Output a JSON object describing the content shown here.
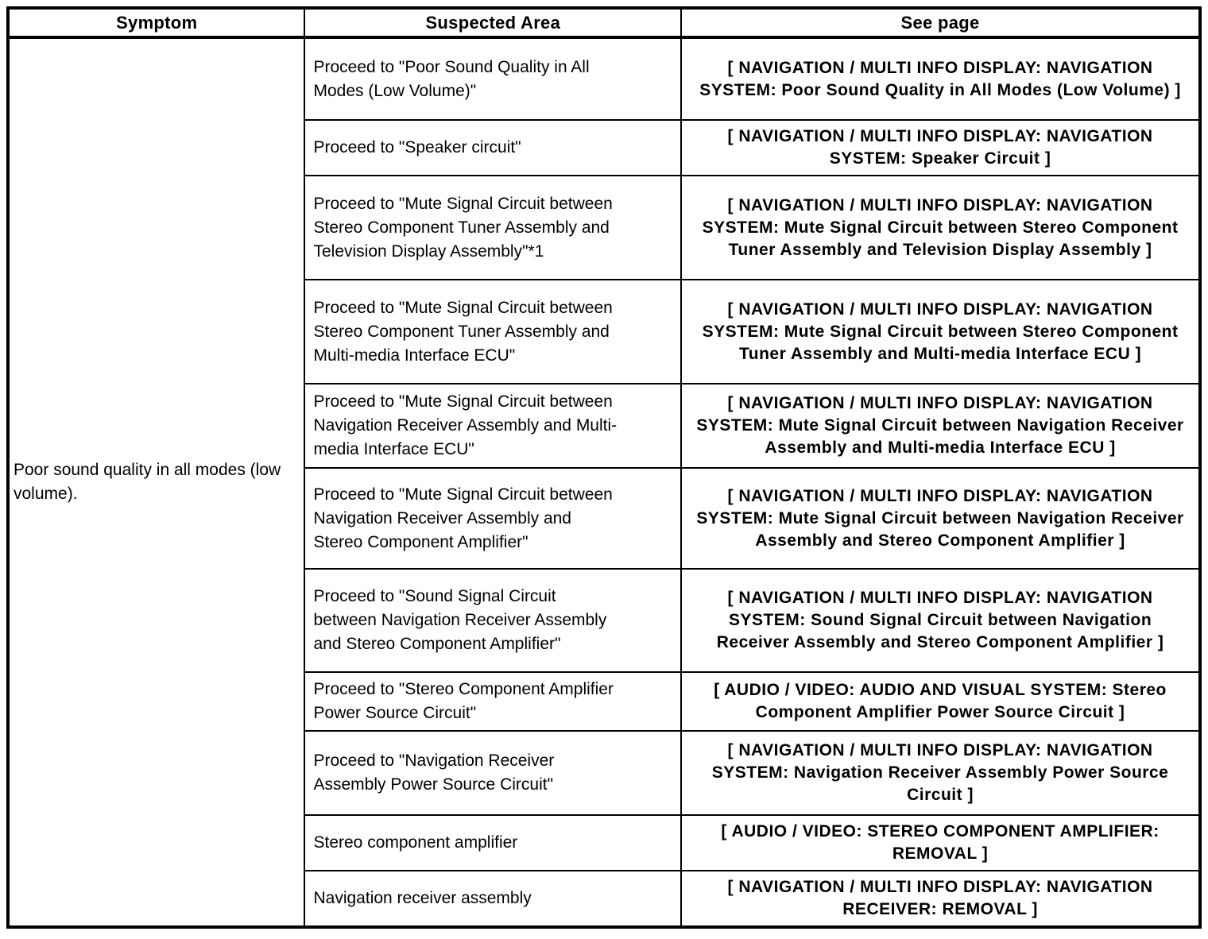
{
  "table": {
    "headers": [
      "Symptom",
      "Suspected Area",
      "See page"
    ],
    "symptom": "Poor sound quality in all modes (low volume).",
    "rows": [
      {
        "suspected_area": "Proceed to \"Poor Sound Quality in All Modes (Low Volume)\"",
        "see_page": "[ NAVIGATION / MULTI INFO DISPLAY: NAVIGATION SYSTEM: Poor Sound Quality in All Modes (Low Volume) ]"
      },
      {
        "suspected_area": "Proceed to \"Speaker circuit\"",
        "see_page": "[ NAVIGATION / MULTI INFO DISPLAY: NAVIGATION SYSTEM: Speaker Circuit ]"
      },
      {
        "suspected_area": "Proceed to \"Mute Signal Circuit between Stereo Component Tuner Assembly and Television Display Assembly\"*1",
        "see_page": "[ NAVIGATION / MULTI INFO DISPLAY: NAVIGATION SYSTEM: Mute Signal Circuit between Stereo Component Tuner Assembly and Television Display Assembly ]"
      },
      {
        "suspected_area": "Proceed to \"Mute Signal Circuit between Stereo Component Tuner Assembly and Multi-media Interface ECU\"",
        "see_page": "[ NAVIGATION / MULTI INFO DISPLAY: NAVIGATION SYSTEM: Mute Signal Circuit between Stereo Component Tuner Assembly and Multi-media Interface ECU ]"
      },
      {
        "suspected_area": "Proceed to \"Mute Signal Circuit between Navigation Receiver Assembly and Multi-media Interface ECU\"",
        "see_page": "[ NAVIGATION / MULTI INFO DISPLAY: NAVIGATION SYSTEM: Mute Signal Circuit between Navigation Receiver Assembly and Multi-media Interface ECU ]"
      },
      {
        "suspected_area": "Proceed to \"Mute Signal Circuit between Navigation Receiver Assembly and Stereo Component Amplifier\"",
        "see_page": "[ NAVIGATION / MULTI INFO DISPLAY: NAVIGATION SYSTEM: Mute Signal Circuit between Navigation Receiver Assembly and Stereo Component Amplifier ]"
      },
      {
        "suspected_area": "Proceed to \"Sound Signal Circuit between Navigation Receiver Assembly and Stereo Component Amplifier\"",
        "see_page": "[ NAVIGATION / MULTI INFO DISPLAY: NAVIGATION SYSTEM: Sound Signal Circuit between Navigation Receiver Assembly and Stereo Component Amplifier ]"
      },
      {
        "suspected_area": "Proceed to \"Stereo Component Amplifier Power Source Circuit\"",
        "see_page": "[ AUDIO / VIDEO: AUDIO AND VISUAL SYSTEM: Stereo Component Amplifier Power Source Circuit ]"
      },
      {
        "suspected_area": "Proceed to \"Navigation Receiver Assembly Power Source Circuit\"",
        "see_page": "[ NAVIGATION / MULTI INFO DISPLAY: NAVIGATION SYSTEM: Navigation Receiver Assembly Power Source Circuit ]"
      },
      {
        "suspected_area": "Stereo component amplifier",
        "see_page": "[ AUDIO / VIDEO: STEREO COMPONENT AMPLIFIER: REMOVAL ]"
      },
      {
        "suspected_area": "Navigation receiver assembly",
        "see_page": "[ NAVIGATION / MULTI INFO DISPLAY: NAVIGATION RECEIVER: REMOVAL ]"
      }
    ]
  }
}
